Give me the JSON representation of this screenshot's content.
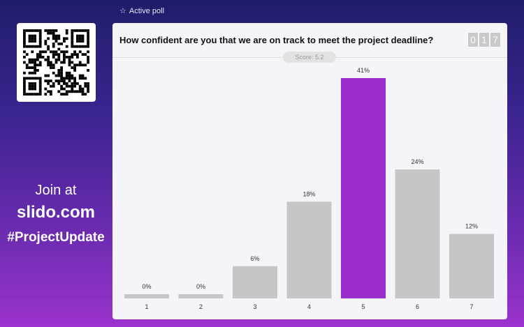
{
  "header": {
    "active_label": "Active poll",
    "star_icon": "star-outline"
  },
  "sidebar": {
    "join_label": "Join at",
    "site": "slido.com",
    "code": "#ProjectUpdate"
  },
  "poll": {
    "question": "How confident are you that we are on track to meet the project deadline?",
    "participants_digits": [
      "0",
      "1",
      "7"
    ],
    "score": "Score: 5.2"
  },
  "colors": {
    "highlight": "#9b2fcc",
    "bar": "#c6c6c6"
  },
  "chart_data": {
    "type": "bar",
    "categories": [
      "1",
      "2",
      "3",
      "4",
      "5",
      "6",
      "7"
    ],
    "values": [
      0,
      0,
      6,
      18,
      41,
      24,
      12
    ],
    "data_labels": [
      "0%",
      "0%",
      "6%",
      "18%",
      "41%",
      "24%",
      "12%"
    ],
    "highlighted_category": "5",
    "ylim": [
      0,
      41
    ]
  }
}
